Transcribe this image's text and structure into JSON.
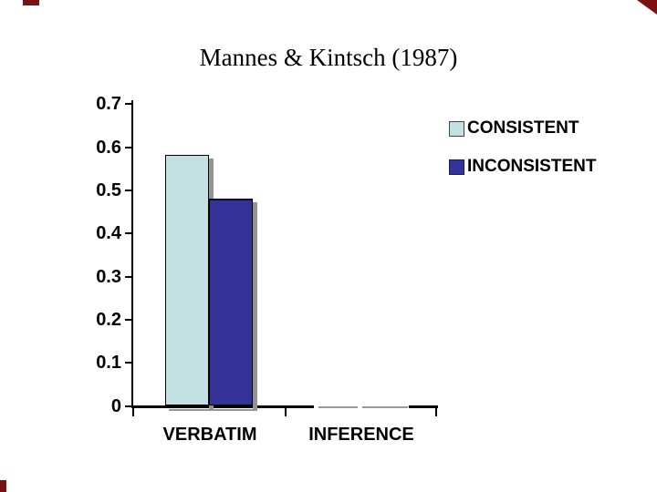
{
  "slide": {
    "accent_color": "#7a1212",
    "background": "#ffffff"
  },
  "chart_data": {
    "type": "bar",
    "title": "Mannes & Kintsch (1987)",
    "categories": [
      "VERBATIM",
      "INFERENCE"
    ],
    "series": [
      {
        "name": "CONSISTENT",
        "color": "#c3e1e3",
        "values": [
          0.58,
          0
        ]
      },
      {
        "name": "INCONSISTENT",
        "color": "#333399",
        "values": [
          0.48,
          0
        ]
      }
    ],
    "xlabel": "",
    "ylabel": "",
    "ylim": [
      0,
      0.7
    ],
    "ytick_labels": [
      "0.7",
      "0.6",
      "0.5",
      "0.4",
      "0.3",
      "0.2",
      "0.1",
      "0"
    ],
    "grid": false,
    "legend_position": "upper-right",
    "bar_shadow_color": "#949494",
    "axis_color": "#000000"
  }
}
